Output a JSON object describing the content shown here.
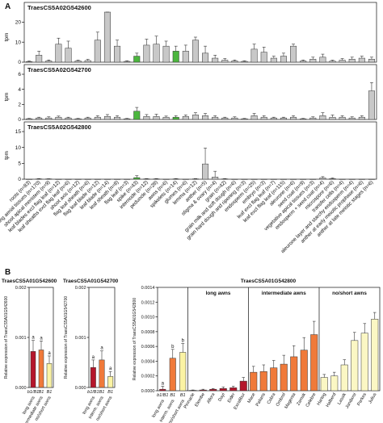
{
  "panel_labels": {
    "a": "A",
    "b": "B"
  },
  "chart_data": [
    {
      "type": "bar",
      "panel": "A",
      "y_label": "tpm",
      "categories": [
        "roots (n=83)",
        "seedling aerial tissues (n=170)",
        "shoot apical meristem (n=9)",
        "leaf blades excl flag leaf (n=12)",
        "leaf sheaths excl flag leaf (n=6)",
        "shoot axis (n=12)",
        "flag leaf sheath (n=6)",
        "flag leaf blade (n=12)",
        "leaf blade (n=14)",
        "leaf sheath (n=8)",
        "flag leaf (n=3)",
        "spike (n=43)",
        "internode (n=12)",
        "peduncle (n=28)",
        "awns (n=6)",
        "spikelets (n=14)",
        "glumes (n=6)",
        "lemma (n=12)",
        "anther (n=5)",
        "stigma & ovary (n=4)",
        "grain (n=42)",
        "grain milk and soft dough (n=6)",
        "grain hard dough and ripening (n=3)",
        "endosperm (n=25)",
        "embryo (n=3)",
        "leaf excl flag leaf (n=7)",
        "leaf excl flag leaf (n=115)",
        "aleurone (n=6)",
        "seed coat (n=9)",
        "vegetative apical tissues (n=3)",
        "endosperm + seed coat (n=4)",
        "microspore (n=6)",
        "transfer cells (n=4)",
        "aleurone layer and starchy endosperm (n=4)",
        "anther at early meiotic prophase (n=6)",
        "anther at late meiotic stages (n=6)"
      ],
      "subplots": [
        {
          "gene": "TraesCS5A02G542600",
          "ylim": [
            0,
            25
          ],
          "yticks": [
            0,
            10,
            20
          ],
          "values": [
            0.3,
            3.5,
            0.6,
            9,
            7,
            0.6,
            0.8,
            11,
            25,
            8,
            0.4,
            3,
            8.5,
            9,
            8,
            5.5,
            5.5,
            11,
            4.5,
            2,
            1,
            0.6,
            0.4,
            6.5,
            5,
            2,
            3,
            8,
            0.6,
            1.5,
            2.5,
            0.5,
            1,
            1.5,
            2,
            1.5
          ],
          "errors": [
            0.3,
            2,
            0.5,
            3,
            3.5,
            0.4,
            0.6,
            4,
            2.5,
            3,
            0.3,
            1.5,
            3,
            4,
            2.5,
            2.5,
            3,
            1.5,
            3.5,
            1.5,
            0.8,
            0.5,
            0.3,
            2.5,
            2.5,
            1,
            1.5,
            1,
            0.5,
            1,
            1.5,
            0.5,
            0.8,
            1,
            1,
            1
          ],
          "highlight": [
            11,
            15
          ]
        },
        {
          "gene": "TraesCS5A02G542700",
          "ylim": [
            0,
            6
          ],
          "yticks": [
            0,
            2,
            4,
            6
          ],
          "values": [
            0.1,
            0.2,
            0.2,
            0.3,
            0.2,
            0.1,
            0.2,
            0.3,
            0.4,
            0.3,
            0.1,
            1.1,
            0.4,
            0.4,
            0.3,
            0.3,
            0.4,
            0.6,
            0.5,
            0.3,
            0.2,
            0.2,
            0.1,
            0.5,
            0.3,
            0.2,
            0.2,
            0.3,
            0.1,
            0.2,
            0.5,
            0.3,
            0.3,
            0.2,
            0.3,
            3.8
          ],
          "errors": [
            0.05,
            0.1,
            0.15,
            0.15,
            0.1,
            0.05,
            0.1,
            0.2,
            0.25,
            0.2,
            0.05,
            0.5,
            0.25,
            0.3,
            0.15,
            0.2,
            0.2,
            0.3,
            0.3,
            0.2,
            0.1,
            0.15,
            0.05,
            0.3,
            0.2,
            0.1,
            0.1,
            0.2,
            0.05,
            0.15,
            0.4,
            0.3,
            0.2,
            0.15,
            0.2,
            1.1
          ],
          "highlight": [
            11,
            15
          ]
        },
        {
          "gene": "TraesCS5A02G542800",
          "ylim": [
            0,
            15
          ],
          "yticks": [
            0,
            5,
            10,
            15
          ],
          "values": [
            0,
            0.1,
            0.1,
            0,
            0,
            0,
            0,
            0,
            0,
            0,
            0,
            0.5,
            0.1,
            0.1,
            0,
            0.1,
            0,
            0.1,
            4.8,
            0.7,
            0.1,
            0,
            0,
            0,
            0,
            0,
            0,
            0,
            0,
            0,
            0.4,
            0.2,
            0,
            0,
            0,
            0
          ],
          "errors": [
            0,
            0.1,
            0.05,
            0,
            0,
            0,
            0,
            0,
            0,
            0,
            0,
            0.6,
            0.1,
            0.1,
            0,
            0.1,
            0,
            0.1,
            5,
            1.8,
            0.1,
            0,
            0,
            0,
            0,
            0,
            0,
            0,
            0,
            0,
            0.4,
            0.2,
            0,
            0,
            0,
            0
          ],
          "highlight": [
            11,
            15
          ]
        }
      ]
    },
    {
      "type": "bar",
      "panel": "B",
      "gene": "TraesCS5A01G542600",
      "ylabel": "Relative expression of TraesCS5A01G542600",
      "ylim": [
        0,
        0.002
      ],
      "yticks": [
        "0.000",
        "0.001",
        "0.002"
      ],
      "genotypes": [
        "b1/B1",
        "B1",
        "B1"
      ],
      "categories": [
        "long awns",
        "intermediate awns",
        "no/short awns"
      ],
      "values": [
        0.00072,
        0.00075,
        0.00048
      ],
      "errors": [
        0.00022,
        0.00018,
        0.00015
      ],
      "letters": [
        "a",
        "a",
        "a"
      ]
    },
    {
      "type": "bar",
      "panel": "B",
      "gene": "TraesCS5A01G542700",
      "ylabel": "Relative expression of TraesCS5A01G542700",
      "ylim": [
        0,
        0.002
      ],
      "yticks": [
        "0.000",
        "0.001",
        "0.002"
      ],
      "genotypes": [
        "b1/B1",
        "B1",
        "B1"
      ],
      "categories": [
        "long awns",
        "interm. awns",
        "no/short awns"
      ],
      "values": [
        0.0004,
        0.00055,
        0.00022
      ],
      "errors": [
        0.00015,
        0.00018,
        0.0001
      ],
      "letters": [
        "a",
        "a",
        "a"
      ]
    },
    {
      "type": "bar",
      "panel": "B",
      "gene": "TraesCS5A01G542800",
      "ylabel": "Relative expression of TraesCS5A01G542800",
      "ylim": [
        0,
        0.0014
      ],
      "yticks": [
        "0.0000",
        "0.0002",
        "0.0004",
        "0.0006",
        "0.0008",
        "0.0010",
        "0.0012",
        "0.0014"
      ],
      "summary": {
        "genotypes": [
          "b1/B1",
          "B1",
          "B1"
        ],
        "categories": [
          "long awns",
          "interm. awns",
          "no/short awns"
        ],
        "values": [
          2e-05,
          0.00044,
          0.00052
        ],
        "errors": [
          4e-05,
          0.00012,
          0.00012
        ],
        "letters": [
          "a",
          "b",
          "b"
        ]
      },
      "groups": [
        {
          "name": "long awns",
          "varieties": [
            "Pinnacle",
            "Elembe",
            "Allora",
            "Dayi",
            "Eider",
            "Excalibur"
          ],
          "values": [
            5e-06,
            1e-05,
            2e-05,
            3e-05,
            4e-05,
            0.00013
          ],
          "errors": [
            5e-06,
            1e-05,
            1e-05,
            2e-05,
            2e-05,
            5e-05
          ]
        },
        {
          "name": "intermediate awns",
          "varieties": [
            "Mace",
            "Paliaris",
            "Cobra",
            "Ombrol",
            "Magenta",
            "Zamak",
            "Celebre"
          ],
          "values": [
            0.00025,
            0.00026,
            0.00031,
            0.00036,
            0.00046,
            0.00055,
            0.00076
          ],
          "errors": [
            8e-05,
            9e-05,
            0.0001,
            0.00012,
            0.00015,
            0.00017,
            0.00018
          ]
        },
        {
          "name": "no/short awns",
          "varieties": [
            "Hartog",
            "Halberd",
            "Lassik",
            "Jandaroi",
            "Parkes",
            "Julius"
          ],
          "values": [
            0.00018,
            0.0002,
            0.00035,
            0.00068,
            0.00078,
            0.00097
          ],
          "errors": [
            4e-05,
            5e-05,
            7e-05,
            0.00011,
            0.00013,
            9e-05
          ]
        }
      ]
    }
  ],
  "colors": {
    "gray_bar": "#c8c8c8",
    "green_bar": "#4cb63e",
    "dark_red": "#b5162b",
    "orange": "#f07a3a",
    "light_orange": "#f6a05b",
    "yellow": "#fbf3a3",
    "pale_yellow": "#fbf7c4"
  }
}
